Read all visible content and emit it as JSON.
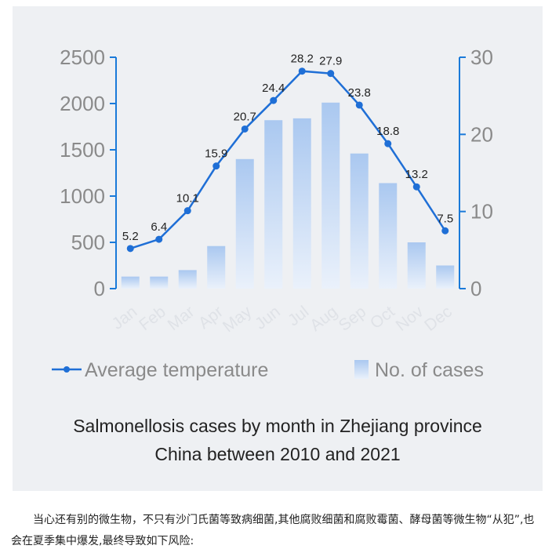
{
  "chart_data": {
    "type": "bar+line",
    "categories": [
      "Jan",
      "Feb",
      "Mar",
      "Apr",
      "May",
      "Jun",
      "Jul",
      "Aug",
      "Sep",
      "Oct",
      "Nov",
      "Dec"
    ],
    "series": [
      {
        "name": "No. of cases",
        "type": "bar",
        "axis": "left",
        "values": [
          130,
          130,
          200,
          460,
          1400,
          1820,
          1840,
          2010,
          1460,
          1140,
          500,
          250
        ]
      },
      {
        "name": "Average temperature",
        "type": "line",
        "axis": "right",
        "values": [
          5.2,
          6.4,
          10.1,
          15.9,
          20.7,
          24.4,
          28.2,
          27.9,
          23.8,
          18.8,
          13.2,
          7.5
        ]
      }
    ],
    "left_axis": {
      "ylim": [
        0,
        2500
      ],
      "ticks": [
        "0",
        "500",
        "1000",
        "1500",
        "2000",
        "2500"
      ]
    },
    "right_axis": {
      "ylim": [
        0,
        30
      ],
      "ticks": [
        "0",
        "10",
        "20",
        "30"
      ]
    },
    "grid": false,
    "legend": "bottom",
    "colors": {
      "line": "#1f6fd6",
      "bar_top": "#aac8f0",
      "bar_bottom": "#e6eef9",
      "axis_left": "#1a7ad9",
      "axis_right": "#1a7ad9",
      "tick_text": "#8a8a8a",
      "month_text": "#dfe2e7"
    }
  },
  "caption": {
    "line1": "Salmonellosis cases by month in Zhejiang province",
    "line2": "China between 2010 and 2021"
  },
  "article": {
    "text": "当心还有别的微生物，不只有沙门氏菌等致病细菌,其他腐败细菌和腐败霉菌、酵母菌等微生物“从犯”,也会在夏季集中爆发,最终导致如下风险:"
  }
}
